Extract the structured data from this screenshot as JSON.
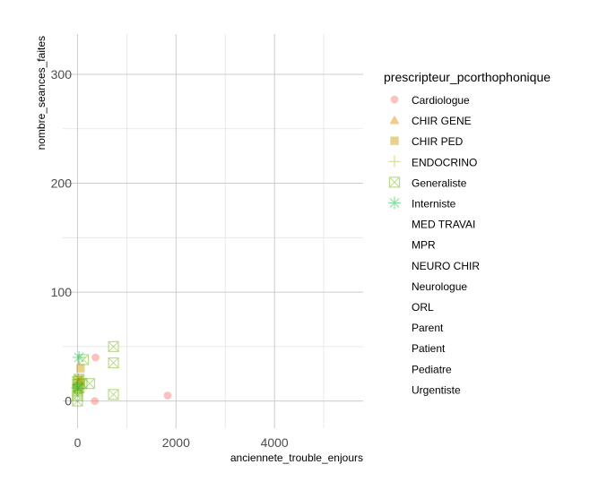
{
  "chart_data": {
    "type": "scatter",
    "xlabel": "anciennete_trouble_enjours",
    "ylabel": "nombre_seances_faites",
    "xlim": [
      -300,
      5800
    ],
    "ylim": [
      -25,
      337
    ],
    "x_ticks": [
      0,
      2000,
      4000
    ],
    "y_ticks": [
      0,
      100,
      200,
      300
    ],
    "x_tick_labels": [
      "0",
      "2000",
      "4000"
    ],
    "y_tick_labels": [
      "0",
      "100",
      "200",
      "300"
    ],
    "grid": true,
    "legend_position": "right",
    "legend_title": "prescripteur_pcorthophonique",
    "series": [
      {
        "name": "Cardiologue",
        "shape": "circle",
        "color": "#F8766D",
        "points": [
          [
            365,
            40
          ],
          [
            350,
            0
          ],
          [
            1830,
            5
          ]
        ]
      },
      {
        "name": "CHIR GENE",
        "shape": "triangle",
        "color": "#E58700",
        "points": [
          [
            30,
            18
          ]
        ]
      },
      {
        "name": "CHIR PED",
        "shape": "square",
        "color": "#C99800",
        "points": [
          [
            60,
            30
          ],
          [
            30,
            20
          ],
          [
            10,
            10
          ]
        ]
      },
      {
        "name": "ENDOCRINO",
        "shape": "plus",
        "color": "#A3A500",
        "points": [
          [
            20,
            20
          ],
          [
            5,
            15
          ]
        ]
      },
      {
        "name": "Generaliste",
        "shape": "boxx",
        "color": "#6BB100",
        "points": [
          [
            730,
            50
          ],
          [
            730,
            35
          ],
          [
            730,
            6
          ],
          [
            245,
            16
          ],
          [
            30,
            20
          ],
          [
            10,
            15
          ],
          [
            0,
            10
          ],
          [
            0,
            5
          ],
          [
            0,
            0
          ],
          [
            90,
            16
          ],
          [
            30,
            12
          ],
          [
            0,
            18
          ],
          [
            120,
            38
          ]
        ]
      },
      {
        "name": "Interniste",
        "shape": "asterisk",
        "color": "#00BA38",
        "points": [
          [
            30,
            40
          ],
          [
            0,
            12
          ]
        ]
      },
      {
        "name": "MED TRAVAI",
        "shape": "none",
        "color": "#00BF7D",
        "points": []
      },
      {
        "name": "MPR",
        "shape": "none",
        "color": "#00C0AF",
        "points": []
      },
      {
        "name": "NEURO CHIR",
        "shape": "none",
        "color": "#00BCD8",
        "points": []
      },
      {
        "name": "Neurologue",
        "shape": "none",
        "color": "#00B0F6",
        "points": []
      },
      {
        "name": "ORL",
        "shape": "none",
        "color": "#619CFF",
        "points": []
      },
      {
        "name": "Parent",
        "shape": "none",
        "color": "#B983FF",
        "points": []
      },
      {
        "name": "Patient",
        "shape": "none",
        "color": "#E76BF3",
        "points": []
      },
      {
        "name": "Pediatre",
        "shape": "none",
        "color": "#FD61D1",
        "points": []
      },
      {
        "name": "Urgentiste",
        "shape": "none",
        "color": "#FF67A4",
        "points": []
      }
    ]
  }
}
